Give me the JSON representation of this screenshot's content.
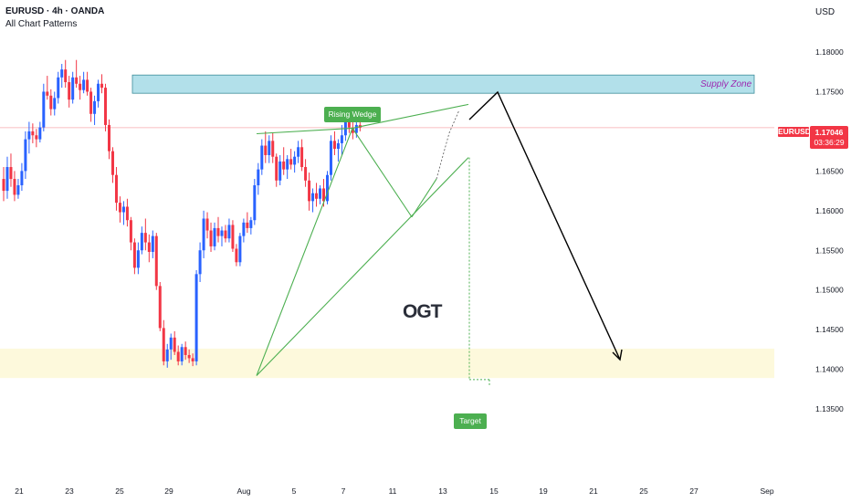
{
  "header": {
    "symbol_line": "EURUSD · 4h · OANDA",
    "indicator_line": "All Chart Patterns",
    "currency": "USD"
  },
  "price_label": {
    "symbol": "EURUSD",
    "price": "1.17046",
    "countdown": "03:36:29",
    "color": "#f23645"
  },
  "annotations": {
    "pattern_label": "Rising Wedge",
    "target_label": "Target",
    "zone_label": "Supply Zone",
    "logo_text": "OGT"
  },
  "colors": {
    "up_candle": "#2962ff",
    "down_candle": "#f23645",
    "pattern_lines": "#4caf50",
    "supply_zone_fill": "#b2e0ea",
    "demand_zone_fill": "#fdf9dc",
    "projection_arrow": "#000000"
  },
  "chart_data": {
    "type": "candlestick",
    "y_range": [
      1.1315,
      1.1837
    ],
    "y_ticks": [
      "1.18000",
      "1.17500",
      "1.17000",
      "1.16500",
      "1.16000",
      "1.15500",
      "1.15000",
      "1.14500",
      "1.14000",
      "1.13500"
    ],
    "x_ticks": [
      "21",
      "23",
      "25",
      "29",
      "Aug",
      "5",
      "7",
      "11",
      "13",
      "15",
      "19",
      "21",
      "25",
      "27",
      "Sep"
    ],
    "last_price": 1.17046,
    "supply_zone": [
      1.1748,
      1.1771
    ],
    "demand_zone": [
      1.1389,
      1.1426
    ],
    "target_price": 1.1387,
    "candles": [
      [
        1.164,
        1.1655,
        1.1612,
        1.1625
      ],
      [
        1.1625,
        1.1668,
        1.1615,
        1.1655
      ],
      [
        1.1655,
        1.1672,
        1.163,
        1.164
      ],
      [
        1.164,
        1.165,
        1.1612,
        1.162
      ],
      [
        1.162,
        1.164,
        1.1615,
        1.1632
      ],
      [
        1.1632,
        1.166,
        1.1625,
        1.165
      ],
      [
        1.165,
        1.17,
        1.164,
        1.169
      ],
      [
        1.169,
        1.1712,
        1.1672,
        1.17
      ],
      [
        1.17,
        1.171,
        1.1685,
        1.1695
      ],
      [
        1.1695,
        1.1703,
        1.168,
        1.169
      ],
      [
        1.169,
        1.1712,
        1.1686,
        1.1705
      ],
      [
        1.1705,
        1.176,
        1.17,
        1.175
      ],
      [
        1.175,
        1.177,
        1.174,
        1.1745
      ],
      [
        1.1745,
        1.1753,
        1.172,
        1.1728
      ],
      [
        1.1728,
        1.175,
        1.172,
        1.1742
      ],
      [
        1.1742,
        1.1775,
        1.1735,
        1.1768
      ],
      [
        1.1768,
        1.1785,
        1.1755,
        1.1778
      ],
      [
        1.1778,
        1.179,
        1.1755,
        1.1762
      ],
      [
        1.1762,
        1.177,
        1.173,
        1.174
      ],
      [
        1.174,
        1.1775,
        1.1735,
        1.1768
      ],
      [
        1.1768,
        1.179,
        1.1755,
        1.176
      ],
      [
        1.176,
        1.177,
        1.174,
        1.1752
      ],
      [
        1.1752,
        1.1775,
        1.1748,
        1.1765
      ],
      [
        1.1765,
        1.1775,
        1.1745,
        1.175
      ],
      [
        1.175,
        1.1755,
        1.1712,
        1.1722
      ],
      [
        1.1722,
        1.1745,
        1.1708,
        1.1738
      ],
      [
        1.1738,
        1.1765,
        1.173,
        1.176
      ],
      [
        1.176,
        1.1772,
        1.1748,
        1.1755
      ],
      [
        1.1755,
        1.176,
        1.17,
        1.1708
      ],
      [
        1.1708,
        1.1715,
        1.1665,
        1.1675
      ],
      [
        1.1675,
        1.168,
        1.1635,
        1.1645
      ],
      [
        1.1645,
        1.1655,
        1.16,
        1.161
      ],
      [
        1.161,
        1.1618,
        1.1585,
        1.1598
      ],
      [
        1.1598,
        1.1612,
        1.1582,
        1.1605
      ],
      [
        1.1605,
        1.1615,
        1.158,
        1.1588
      ],
      [
        1.1588,
        1.1592,
        1.155,
        1.156
      ],
      [
        1.156,
        1.1565,
        1.152,
        1.1528
      ],
      [
        1.1528,
        1.156,
        1.152,
        1.155
      ],
      [
        1.155,
        1.158,
        1.1545,
        1.1572
      ],
      [
        1.1572,
        1.159,
        1.155,
        1.156
      ],
      [
        1.156,
        1.157,
        1.1535,
        1.1548
      ],
      [
        1.1548,
        1.1575,
        1.154,
        1.1568
      ],
      [
        1.1568,
        1.1572,
        1.15,
        1.1505
      ],
      [
        1.1505,
        1.151,
        1.1448,
        1.1452
      ],
      [
        1.1452,
        1.1462,
        1.1405,
        1.141
      ],
      [
        1.141,
        1.1432,
        1.1402,
        1.1425
      ],
      [
        1.1425,
        1.1445,
        1.1412,
        1.144
      ],
      [
        1.144,
        1.1448,
        1.1418,
        1.1422
      ],
      [
        1.1422,
        1.143,
        1.1405,
        1.141
      ],
      [
        1.141,
        1.1432,
        1.1405,
        1.1428
      ],
      [
        1.1428,
        1.1435,
        1.1412,
        1.1418
      ],
      [
        1.1418,
        1.1425,
        1.1408,
        1.1414
      ],
      [
        1.1414,
        1.142,
        1.1404,
        1.141
      ],
      [
        1.141,
        1.1525,
        1.1405,
        1.152
      ],
      [
        1.152,
        1.156,
        1.151,
        1.155
      ],
      [
        1.155,
        1.16,
        1.154,
        1.159
      ],
      [
        1.159,
        1.1598,
        1.1565,
        1.1575
      ],
      [
        1.1575,
        1.1585,
        1.1548,
        1.1555
      ],
      [
        1.1555,
        1.1585,
        1.155,
        1.1578
      ],
      [
        1.1578,
        1.1592,
        1.156,
        1.1568
      ],
      [
        1.1568,
        1.158,
        1.1555,
        1.1575
      ],
      [
        1.1575,
        1.1582,
        1.156,
        1.1565
      ],
      [
        1.1565,
        1.159,
        1.156,
        1.1582
      ],
      [
        1.1582,
        1.1588,
        1.1548,
        1.1552
      ],
      [
        1.1552,
        1.1558,
        1.153,
        1.1535
      ],
      [
        1.1535,
        1.1572,
        1.153,
        1.1568
      ],
      [
        1.1568,
        1.159,
        1.156,
        1.1585
      ],
      [
        1.1585,
        1.1598,
        1.1572,
        1.1578
      ],
      [
        1.1578,
        1.1592,
        1.157,
        1.1588
      ],
      [
        1.1588,
        1.164,
        1.1582,
        1.1632
      ],
      [
        1.1632,
        1.166,
        1.162,
        1.1652
      ],
      [
        1.1652,
        1.169,
        1.1645,
        1.1682
      ],
      [
        1.1682,
        1.17,
        1.166,
        1.167
      ],
      [
        1.167,
        1.1695,
        1.166,
        1.1688
      ],
      [
        1.1688,
        1.1698,
        1.166,
        1.1668
      ],
      [
        1.1668,
        1.1672,
        1.163,
        1.1638
      ],
      [
        1.1638,
        1.167,
        1.1632,
        1.1662
      ],
      [
        1.1662,
        1.168,
        1.1645,
        1.1652
      ],
      [
        1.1652,
        1.167,
        1.164,
        1.1665
      ],
      [
        1.1665,
        1.1678,
        1.1652,
        1.1658
      ],
      [
        1.1658,
        1.1675,
        1.1648,
        1.1668
      ],
      [
        1.1668,
        1.1688,
        1.166,
        1.168
      ],
      [
        1.168,
        1.169,
        1.165,
        1.1655
      ],
      [
        1.1655,
        1.1665,
        1.163,
        1.1638
      ],
      [
        1.1638,
        1.1648,
        1.16,
        1.1612
      ],
      [
        1.1612,
        1.1628,
        1.1598,
        1.1622
      ],
      [
        1.1622,
        1.1635,
        1.1605,
        1.1615
      ],
      [
        1.1615,
        1.1632,
        1.1608,
        1.1628
      ],
      [
        1.1628,
        1.164,
        1.1605,
        1.1612
      ],
      [
        1.1612,
        1.165,
        1.1608,
        1.1645
      ],
      [
        1.1645,
        1.1695,
        1.1638,
        1.1688
      ],
      [
        1.1688,
        1.17,
        1.167,
        1.1678
      ],
      [
        1.1678,
        1.169,
        1.1662,
        1.1685
      ],
      [
        1.1685,
        1.1708,
        1.167,
        1.1695
      ],
      [
        1.1695,
        1.173,
        1.1688,
        1.1722
      ],
      [
        1.1722,
        1.1728,
        1.1698,
        1.1705
      ],
      [
        1.1705,
        1.1725,
        1.169,
        1.1698
      ],
      [
        1.1698,
        1.1712,
        1.1692,
        1.1708
      ],
      [
        1.1708,
        1.1712,
        1.17,
        1.17046
      ]
    ]
  }
}
